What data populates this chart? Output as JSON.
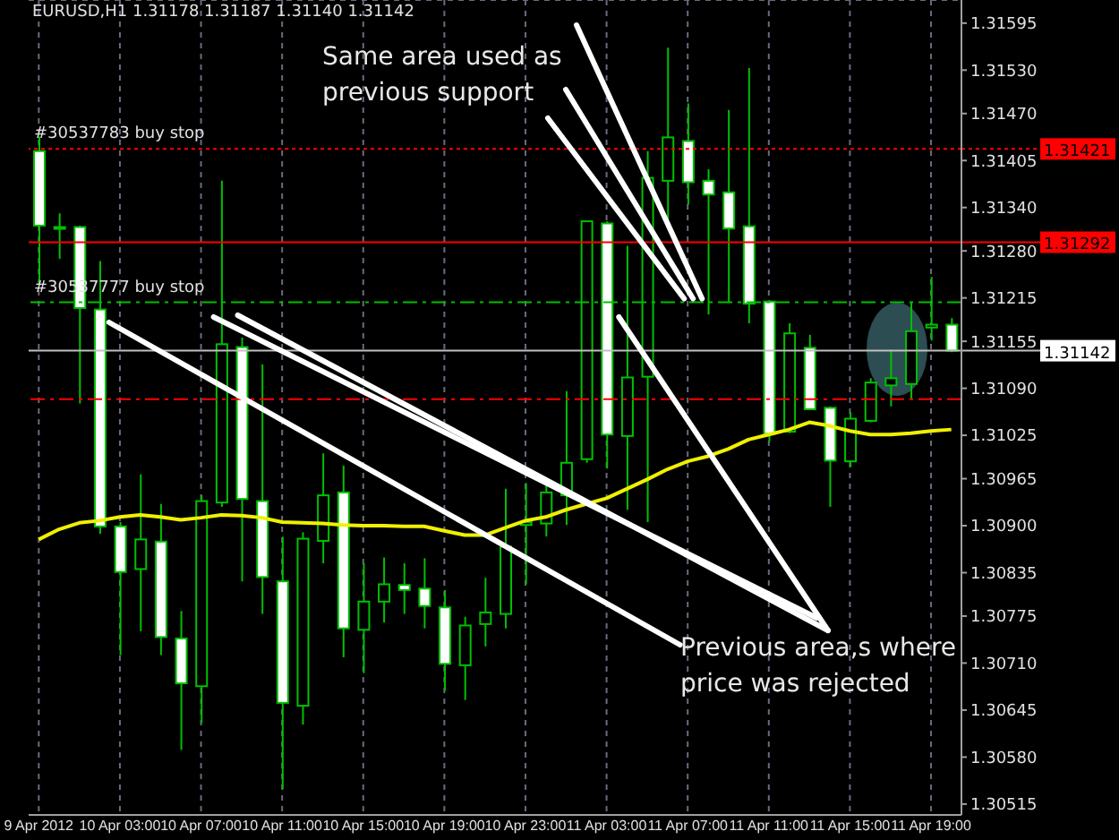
{
  "chart_data": {
    "type": "candlestick",
    "title": "EURUSD,H1  1.31178 1.31187 1.31140 1.31142",
    "categories": [
      "9 Apr 2012",
      null,
      null,
      null,
      "10 Apr 03:00",
      null,
      null,
      null,
      "10 Apr 07:00",
      null,
      null,
      null,
      "10 Apr 11:00",
      null,
      null,
      null,
      "10 Apr 15:00",
      null,
      null,
      null,
      "10 Apr 19:00",
      null,
      null,
      null,
      "10 Apr 23:00",
      null,
      null,
      null,
      "11 Apr 03:00",
      null,
      null,
      null,
      "11 Apr 07:00",
      null,
      null,
      null,
      "11 Apr 11:00",
      null,
      null,
      null,
      "11 Apr 15:00",
      null,
      null,
      null,
      "11 Apr 19:00",
      null
    ],
    "ohlc": [
      [
        1.31418,
        1.31438,
        1.31233,
        1.31315
      ],
      [
        1.31313,
        1.31332,
        1.31269,
        1.31312
      ],
      [
        1.31313,
        1.31315,
        1.31069,
        1.31201
      ],
      [
        1.31199,
        1.31266,
        1.30889,
        1.30899
      ],
      [
        1.30899,
        1.30905,
        1.30721,
        1.30836
      ],
      [
        1.3084,
        1.30971,
        1.30754,
        1.30881
      ],
      [
        1.30878,
        1.3093,
        1.30721,
        1.30746
      ],
      [
        1.30744,
        1.30782,
        1.3059,
        1.30682
      ],
      [
        1.30678,
        1.30942,
        1.30627,
        1.30934
      ],
      [
        1.30932,
        1.31377,
        1.30926,
        1.31151
      ],
      [
        1.31147,
        1.3116,
        1.30823,
        1.30937
      ],
      [
        1.30934,
        1.31123,
        1.30778,
        1.30829
      ],
      [
        1.30823,
        1.30885,
        1.30536,
        1.30655
      ],
      [
        1.30651,
        1.30891,
        1.30625,
        1.30882
      ],
      [
        1.30879,
        1.31,
        1.30848,
        1.30942
      ],
      [
        1.30946,
        1.30983,
        1.30718,
        1.30758
      ],
      [
        1.30756,
        1.30848,
        1.30696,
        1.30795
      ],
      [
        1.30795,
        1.30856,
        1.30766,
        1.30819
      ],
      [
        1.30818,
        1.30848,
        1.30778,
        1.30811
      ],
      [
        1.30813,
        1.30855,
        1.30758,
        1.30789
      ],
      [
        1.30787,
        1.30811,
        1.30672,
        1.30709
      ],
      [
        1.30707,
        1.30774,
        1.30659,
        1.30762
      ],
      [
        1.30764,
        1.30828,
        1.30733,
        1.3078
      ],
      [
        1.30778,
        1.30951,
        1.30758,
        1.30871
      ],
      [
        1.30901,
        1.30959,
        1.30819,
        1.30905
      ],
      [
        1.30903,
        1.30963,
        1.30885,
        1.30946
      ],
      [
        1.30942,
        1.31086,
        1.30901,
        1.30987
      ],
      [
        1.30992,
        1.31321,
        1.30987,
        1.31321
      ],
      [
        1.31318,
        1.31321,
        1.30979,
        1.31026
      ],
      [
        1.31024,
        1.31287,
        1.30922,
        1.31105
      ],
      [
        1.31106,
        1.31418,
        1.30905,
        1.31381
      ],
      [
        1.31377,
        1.31561,
        1.31324,
        1.31437
      ],
      [
        1.31432,
        1.31484,
        1.31344,
        1.31375
      ],
      [
        1.31377,
        1.31393,
        1.31192,
        1.31358
      ],
      [
        1.31361,
        1.31475,
        1.31209,
        1.31311
      ],
      [
        1.31314,
        1.31533,
        1.3118,
        1.31207
      ],
      [
        1.3121,
        1.31212,
        1.31016,
        1.31027
      ],
      [
        1.3103,
        1.3118,
        1.31028,
        1.31166
      ],
      [
        1.31146,
        1.31164,
        1.3106,
        1.31061
      ],
      [
        1.31063,
        1.31065,
        1.30926,
        1.3099
      ],
      [
        1.30989,
        1.31057,
        1.30981,
        1.31048
      ],
      [
        1.31045,
        1.31104,
        1.31043,
        1.31098
      ],
      [
        1.31094,
        1.31143,
        1.31065,
        1.31104
      ],
      [
        1.31096,
        1.31209,
        1.31076,
        1.31169
      ],
      [
        1.31174,
        1.31244,
        1.31156,
        1.31178
      ],
      [
        1.31178,
        1.31187,
        1.3114,
        1.31142
      ]
    ],
    "series": [
      {
        "type": "line",
        "color": "#f0f000",
        "values": [
          1.30881,
          1.30895,
          1.30904,
          1.30907,
          1.30912,
          1.30915,
          1.30912,
          1.30908,
          1.30911,
          1.30915,
          1.30914,
          1.30911,
          1.30905,
          1.30904,
          1.30903,
          1.30901,
          1.309,
          1.309,
          1.30899,
          1.30899,
          1.30893,
          1.30887,
          1.30887,
          1.30897,
          1.30907,
          1.30912,
          1.30922,
          1.3093,
          1.30938,
          1.30951,
          1.30964,
          1.30978,
          1.30989,
          1.30996,
          1.31006,
          1.31019,
          1.31026,
          1.31033,
          1.31043,
          1.31038,
          1.31031,
          1.31026,
          1.31026,
          1.31028,
          1.31031,
          1.31033
        ]
      }
    ],
    "ylim": [
      1.305,
      1.31627
    ],
    "yticks": [
      1.31595,
      {
        "value": 1.3153,
        "label": "1.31530"
      },
      {
        "value": 1.3147,
        "label": "1.31470"
      },
      1.31405,
      {
        "value": 1.3134,
        "label": "1.31340"
      },
      {
        "value": 1.3128,
        "label": "1.31280"
      },
      1.31215,
      1.31155,
      {
        "value": 1.3109,
        "label": "1.31090"
      },
      1.31025,
      1.30965,
      {
        "value": 1.309,
        "label": "1.30900"
      },
      1.30835,
      1.30775,
      {
        "value": 1.3071,
        "label": "1.30710"
      },
      1.30645,
      {
        "value": 1.3058,
        "label": "1.30580"
      },
      1.30515
    ],
    "ref_lines": [
      {
        "axis": "y",
        "value": 1.31421,
        "label": "1.31421",
        "color": "#ff0000",
        "line_style": "dotted"
      },
      {
        "axis": "y",
        "value": 1.31292,
        "label": "1.31292",
        "color": "#ff0000",
        "line_style": "solid"
      },
      {
        "axis": "y",
        "value": 1.31209,
        "label": null,
        "color": "#00c000",
        "line_style": "dashed"
      },
      {
        "axis": "y",
        "value": 1.31142,
        "label": "1.31142",
        "color": "#c0c0c0",
        "line_style": "solid"
      },
      {
        "axis": "y",
        "value": 1.31075,
        "label": null,
        "color": "#ff0000",
        "line_style": "dashed"
      }
    ],
    "annotations": [
      {
        "text": "Same area used as previous support",
        "x": "11 Apr 07:00",
        "y": 1.31209
      },
      "Previous area,s where price was rejected",
      {
        "text": "#30537783 buy stop",
        "y": 1.31421
      },
      {
        "text": "#30537777 buy stop",
        "y": 1.31209
      }
    ],
    "grid": true
  }
}
